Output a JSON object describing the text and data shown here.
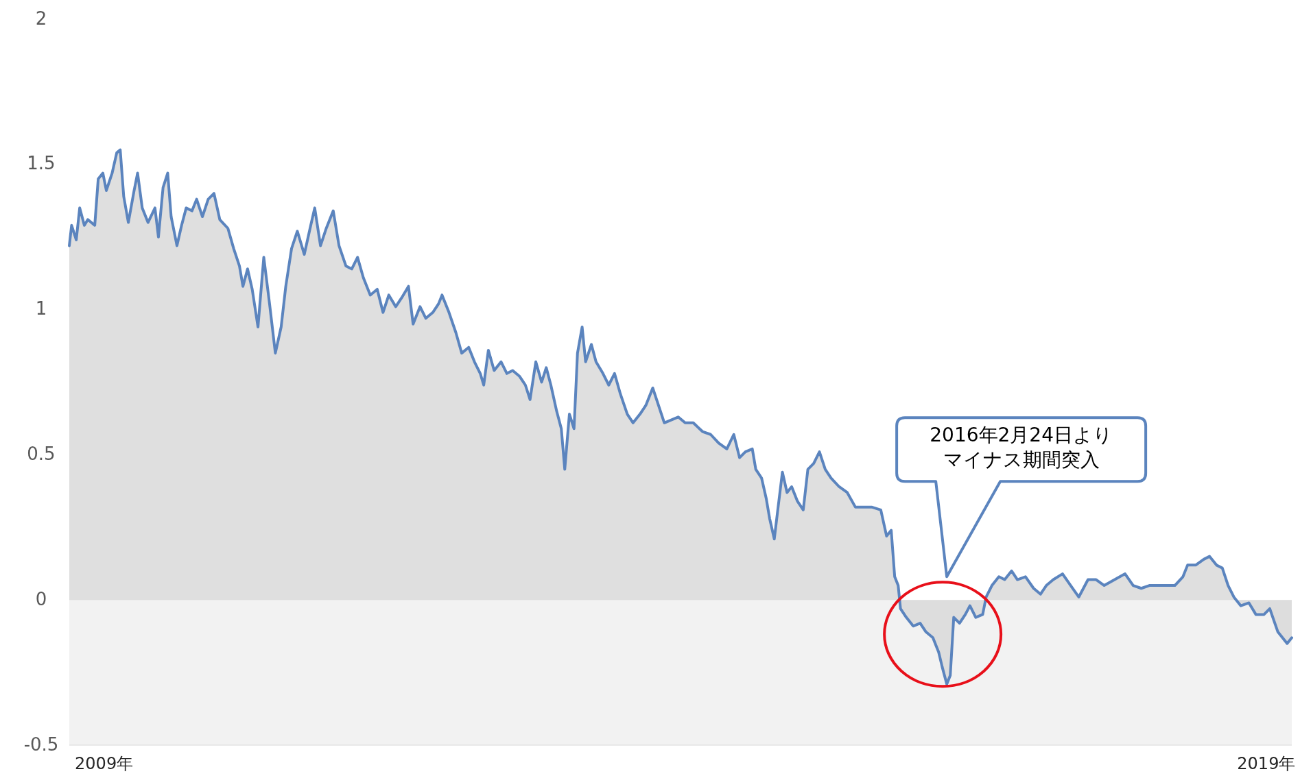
{
  "chart_data": {
    "type": "area",
    "x": [
      2009.0,
      2009.02,
      2009.06,
      2009.09,
      2009.13,
      2009.16,
      2009.22,
      2009.25,
      2009.29,
      2009.32,
      2009.37,
      2009.41,
      2009.44,
      2009.47,
      2009.51,
      2009.56,
      2009.59,
      2009.63,
      2009.68,
      2009.74,
      2009.77,
      2009.81,
      2009.85,
      2009.88,
      2009.93,
      2009.97,
      2010.01,
      2010.06,
      2010.1,
      2010.15,
      2010.2,
      2010.25,
      2010.3,
      2010.37,
      2010.42,
      2010.47,
      2010.5,
      2010.54,
      2010.58,
      2010.63,
      2010.68,
      2010.73,
      2010.78,
      2010.83,
      2010.87,
      2010.92,
      2010.97,
      2011.03,
      2011.08,
      2011.12,
      2011.17,
      2011.22,
      2011.28,
      2011.33,
      2011.39,
      2011.44,
      2011.49,
      2011.54,
      2011.6,
      2011.66,
      2011.71,
      2011.76,
      2011.82,
      2011.87,
      2011.93,
      2011.97,
      2012.03,
      2012.08,
      2012.14,
      2012.19,
      2012.22,
      2012.28,
      2012.34,
      2012.39,
      2012.45,
      2012.5,
      2012.55,
      2012.58,
      2012.62,
      2012.67,
      2012.73,
      2012.78,
      2012.83,
      2012.89,
      2012.94,
      2012.98,
      2013.03,
      2013.08,
      2013.12,
      2013.16,
      2013.21,
      2013.25,
      2013.28,
      2013.32,
      2013.36,
      2013.39,
      2013.43,
      2013.46,
      2013.51,
      2013.55,
      2013.61,
      2013.66,
      2013.71,
      2013.76,
      2013.82,
      2013.87,
      2013.93,
      2013.98,
      2014.04,
      2014.09,
      2014.14,
      2014.2,
      2014.26,
      2014.32,
      2014.39,
      2014.47,
      2014.54,
      2014.61,
      2014.68,
      2014.74,
      2014.79,
      2014.84,
      2014.9,
      2014.93,
      2014.98,
      2015.02,
      2015.05,
      2015.09,
      2015.12,
      2015.16,
      2015.2,
      2015.24,
      2015.29,
      2015.34,
      2015.38,
      2015.43,
      2015.48,
      2015.53,
      2015.58,
      2015.65,
      2015.72,
      2015.79,
      2015.86,
      2015.93,
      2016.01,
      2016.06,
      2016.1,
      2016.13,
      2016.16,
      2016.18,
      2016.23,
      2016.29,
      2016.35,
      2016.4,
      2016.46,
      2016.51,
      2016.54,
      2016.58,
      2016.61,
      2016.64,
      2016.69,
      2016.74,
      2016.78,
      2016.83,
      2016.89,
      2016.92,
      2016.97,
      2017.03,
      2017.08,
      2017.14,
      2017.19,
      2017.26,
      2017.33,
      2017.39,
      2017.44,
      2017.5,
      2017.58,
      2017.65,
      2017.72,
      2017.8,
      2017.87,
      2017.94,
      2018.03,
      2018.12,
      2018.19,
      2018.26,
      2018.33,
      2018.44,
      2018.55,
      2018.62,
      2018.66,
      2018.73,
      2018.8,
      2018.85,
      2018.91,
      2018.96,
      2019.01,
      2019.06,
      2019.12,
      2019.19,
      2019.25,
      2019.32,
      2019.37,
      2019.44,
      2019.52,
      2019.56
    ],
    "series": [
      {
        "color": "#5b84be",
        "values": [
          1.22,
          1.29,
          1.24,
          1.35,
          1.29,
          1.31,
          1.29,
          1.45,
          1.47,
          1.41,
          1.47,
          1.54,
          1.55,
          1.39,
          1.3,
          1.41,
          1.47,
          1.35,
          1.3,
          1.35,
          1.25,
          1.42,
          1.47,
          1.32,
          1.22,
          1.29,
          1.35,
          1.34,
          1.38,
          1.32,
          1.38,
          1.4,
          1.31,
          1.28,
          1.21,
          1.15,
          1.08,
          1.14,
          1.07,
          0.94,
          1.18,
          1.02,
          0.85,
          0.94,
          1.08,
          1.21,
          1.27,
          1.19,
          1.28,
          1.35,
          1.22,
          1.28,
          1.34,
          1.22,
          1.15,
          1.14,
          1.18,
          1.11,
          1.05,
          1.07,
          0.99,
          1.05,
          1.01,
          1.04,
          1.08,
          0.95,
          1.01,
          0.97,
          0.99,
          1.02,
          1.05,
          0.99,
          0.92,
          0.85,
          0.87,
          0.82,
          0.78,
          0.74,
          0.86,
          0.79,
          0.82,
          0.78,
          0.79,
          0.77,
          0.74,
          0.69,
          0.82,
          0.75,
          0.8,
          0.74,
          0.65,
          0.59,
          0.45,
          0.64,
          0.59,
          0.85,
          0.94,
          0.82,
          0.88,
          0.82,
          0.78,
          0.74,
          0.78,
          0.71,
          0.64,
          0.61,
          0.64,
          0.67,
          0.73,
          0.67,
          0.61,
          0.62,
          0.63,
          0.61,
          0.61,
          0.58,
          0.57,
          0.54,
          0.52,
          0.57,
          0.49,
          0.51,
          0.52,
          0.45,
          0.42,
          0.35,
          0.28,
          0.21,
          0.31,
          0.44,
          0.37,
          0.39,
          0.34,
          0.31,
          0.45,
          0.47,
          0.51,
          0.45,
          0.42,
          0.39,
          0.37,
          0.32,
          0.32,
          0.32,
          0.31,
          0.22,
          0.24,
          0.08,
          0.05,
          -0.03,
          -0.06,
          -0.09,
          -0.08,
          -0.11,
          -0.13,
          -0.18,
          -0.23,
          -0.29,
          -0.26,
          -0.06,
          -0.08,
          -0.05,
          -0.02,
          -0.06,
          -0.05,
          0.01,
          0.05,
          0.08,
          0.07,
          0.1,
          0.07,
          0.08,
          0.04,
          0.02,
          0.05,
          0.07,
          0.09,
          0.05,
          0.01,
          0.07,
          0.07,
          0.05,
          0.07,
          0.09,
          0.05,
          0.04,
          0.05,
          0.05,
          0.05,
          0.08,
          0.12,
          0.12,
          0.14,
          0.15,
          0.12,
          0.11,
          0.05,
          0.01,
          -0.02,
          -0.01,
          -0.05,
          -0.05,
          -0.03,
          -0.11,
          -0.15,
          -0.13
        ]
      }
    ],
    "xlim": [
      2009.0,
      2019.56
    ],
    "xticks": [
      {
        "value": 2009.3,
        "label": "2009年"
      },
      {
        "value": 2019.34,
        "label": "2019年"
      }
    ],
    "ylim": [
      -0.5,
      2
    ],
    "yticks": [
      2,
      1.5,
      1,
      0.5,
      0,
      -0.5
    ],
    "bands": [
      {
        "axis": "y",
        "from": -0.5,
        "to": 0,
        "color": "#f2f2f2"
      }
    ],
    "annotations": [
      "2016年2月24日よりマイナス期間突入"
    ]
  }
}
